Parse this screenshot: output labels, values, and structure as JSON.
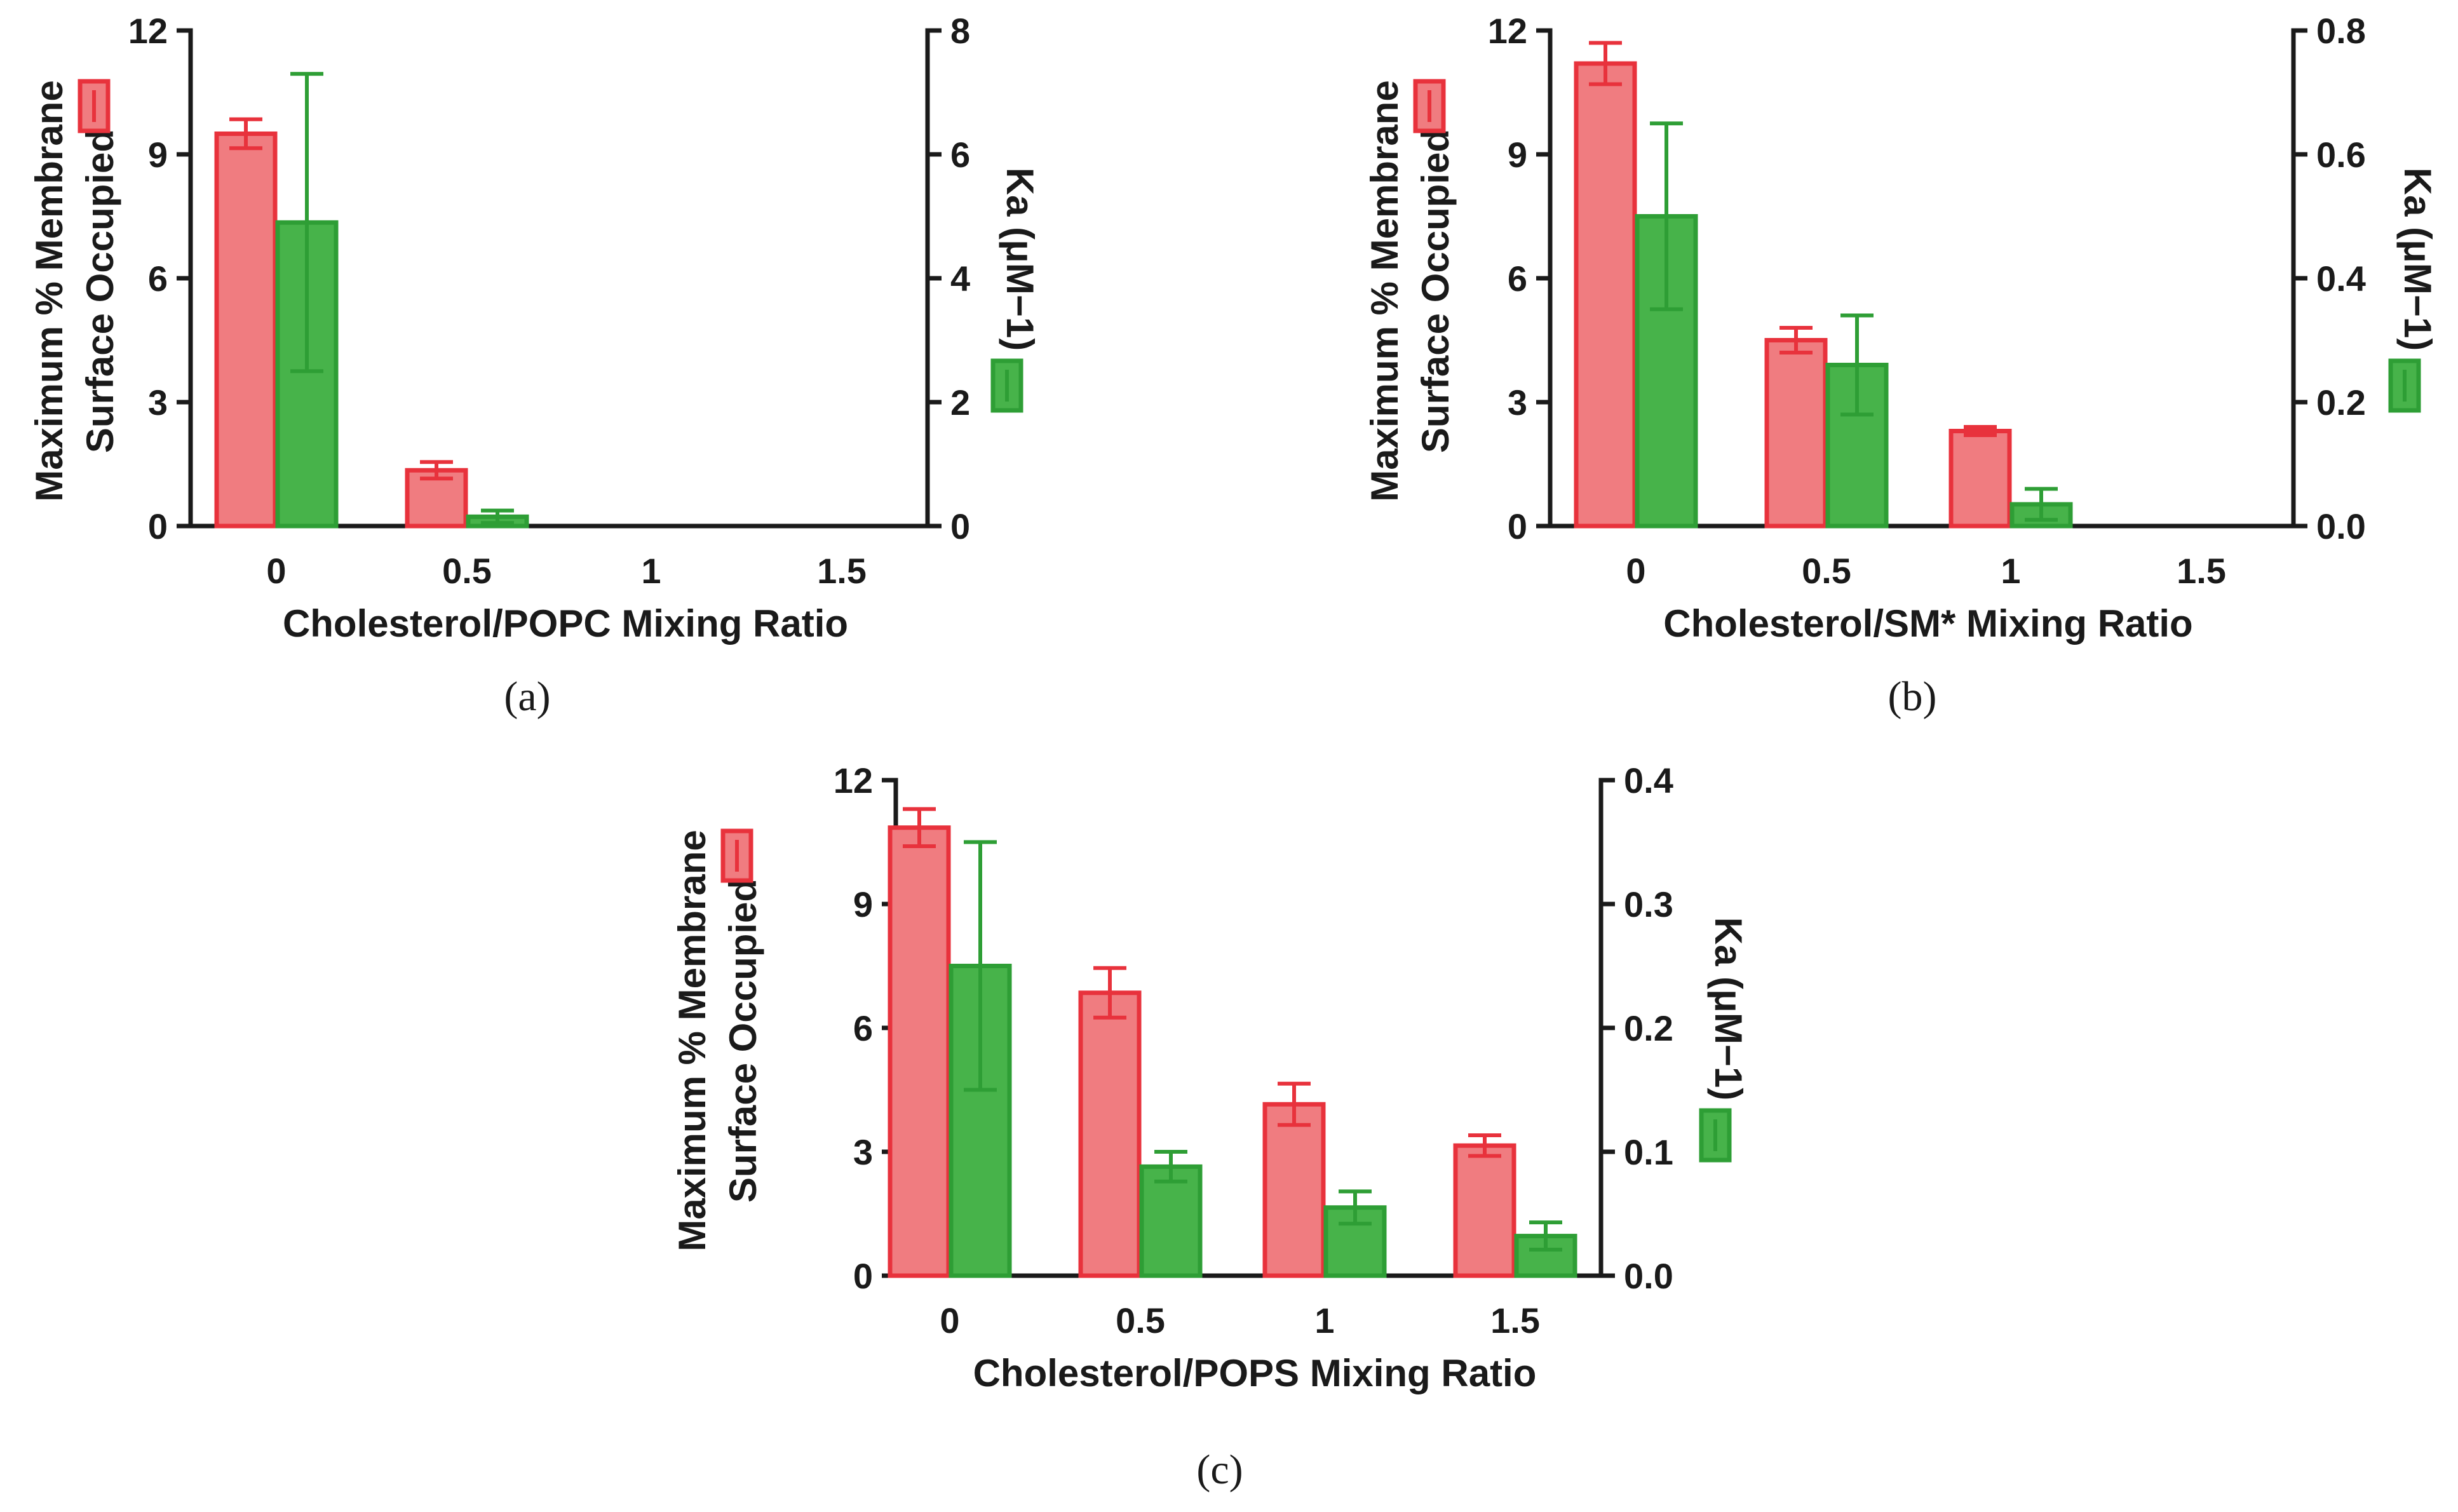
{
  "colors": {
    "red_fill": "#f07c80",
    "red_stroke": "#e8323c",
    "green_fill": "#47b34a",
    "green_stroke": "#2e9e35",
    "axis": "#1a1a1a"
  },
  "chart_data": [
    {
      "id": "a",
      "type": "bar",
      "panel_label": "(a)",
      "xlabel": "Cholesterol/POPC Mixing Ratio",
      "categories": [
        "0",
        "0.5",
        "1",
        "1.5"
      ],
      "ylabel_left": [
        "Maximum % Membrane",
        "Surface Occupied"
      ],
      "ylabel_right": "Ka (μM−1)",
      "ylim_left": [
        0,
        12
      ],
      "yticks_left": [
        "0",
        "3",
        "6",
        "9",
        "12"
      ],
      "ylim_right": [
        0,
        8
      ],
      "yticks_right": [
        "0",
        "2",
        "4",
        "6",
        "8"
      ],
      "series": [
        {
          "name": "Maximum % Membrane Surface Occupied",
          "axis": "left",
          "color": "red",
          "values": [
            9.5,
            1.35,
            null,
            null
          ],
          "errors": [
            0.35,
            0.2,
            null,
            null
          ]
        },
        {
          "name": "Ka",
          "axis": "right",
          "color": "green",
          "values": [
            4.9,
            0.15,
            null,
            null
          ],
          "errors": [
            2.4,
            0.1,
            null,
            null
          ]
        }
      ]
    },
    {
      "id": "b",
      "type": "bar",
      "panel_label": "(b)",
      "xlabel": "Cholesterol/SM* Mixing Ratio",
      "categories": [
        "0",
        "0.5",
        "1",
        "1.5"
      ],
      "ylabel_left": [
        "Maximum % Membrane",
        "Surface Occupied"
      ],
      "ylabel_right": "Ka (μM−1)",
      "ylim_left": [
        0,
        12
      ],
      "yticks_left": [
        "0",
        "3",
        "6",
        "9",
        "12"
      ],
      "ylim_right": [
        0,
        0.8
      ],
      "yticks_right": [
        "0.0",
        "0.2",
        "0.4",
        "0.6",
        "0.8"
      ],
      "series": [
        {
          "name": "Maximum % Membrane Surface Occupied",
          "axis": "left",
          "color": "red",
          "values": [
            11.2,
            4.5,
            2.3,
            null
          ],
          "errors": [
            0.5,
            0.3,
            0.1,
            null
          ]
        },
        {
          "name": "Ka",
          "axis": "right",
          "color": "green",
          "values": [
            0.5,
            0.26,
            0.035,
            null
          ],
          "errors": [
            0.15,
            0.08,
            0.025,
            null
          ]
        }
      ]
    },
    {
      "id": "c",
      "type": "bar",
      "panel_label": "(c)",
      "xlabel": "Cholesterol/POPS Mixing Ratio",
      "categories": [
        "0",
        "0.5",
        "1",
        "1.5"
      ],
      "ylabel_left": [
        "Maximum % Membrane",
        "Surface Occupied"
      ],
      "ylabel_right": "Ka (μM−1)",
      "ylim_left": [
        0,
        12
      ],
      "yticks_left": [
        "0",
        "3",
        "6",
        "9",
        "12"
      ],
      "ylim_right": [
        0,
        0.4
      ],
      "yticks_right": [
        "0.0",
        "0.1",
        "0.2",
        "0.3",
        "0.4"
      ],
      "series": [
        {
          "name": "Maximum % Membrane Surface Occupied",
          "axis": "left",
          "color": "red",
          "values": [
            10.85,
            6.85,
            4.15,
            3.15
          ],
          "errors": [
            0.45,
            0.6,
            0.5,
            0.25
          ]
        },
        {
          "name": "Ka",
          "axis": "right",
          "color": "green",
          "values": [
            0.25,
            0.088,
            0.055,
            0.032
          ],
          "errors": [
            0.1,
            0.012,
            0.013,
            0.011
          ]
        }
      ]
    }
  ]
}
